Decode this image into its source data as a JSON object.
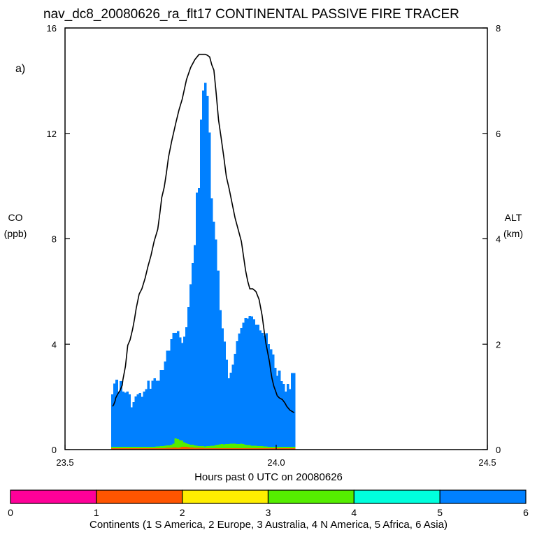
{
  "chart_data": {
    "type": "bar",
    "title": "nav_dc8_20080626_ra_flt17 CONTINENTAL PASSIVE FIRE TRACER",
    "panel_label": "a)",
    "xlabel": "Hours past 0 UTC on 20080626",
    "ylabel": "CO",
    "ylabel_unit": "(ppb)",
    "y2label": "ALT",
    "y2label_unit": "(km)",
    "xlim": [
      23.5,
      24.5
    ],
    "ylim": [
      0,
      16
    ],
    "y2lim": [
      0,
      8
    ],
    "x_ticks": [
      "23.5",
      "24.0",
      "24.5"
    ],
    "y_ticks": [
      "0",
      "4",
      "8",
      "12",
      "16"
    ],
    "y2_ticks": [
      "0",
      "2",
      "4",
      "6",
      "8"
    ],
    "grid": false,
    "stacked": true,
    "x": [
      23.6125,
      23.6175,
      23.6225,
      23.6275,
      23.6325,
      23.6375,
      23.6425,
      23.6475,
      23.6525,
      23.6575,
      23.6625,
      23.6675,
      23.6725,
      23.6775,
      23.6825,
      23.6875,
      23.6925,
      23.6975,
      23.7025,
      23.7075,
      23.7125,
      23.7175,
      23.7225,
      23.7275,
      23.7325,
      23.7375,
      23.7425,
      23.7475,
      23.7525,
      23.7575,
      23.7625,
      23.7675,
      23.7725,
      23.7775,
      23.7825,
      23.7875,
      23.7925,
      23.7975,
      23.8025,
      23.8075,
      23.8125,
      23.8175,
      23.8225,
      23.8275,
      23.8325,
      23.8375,
      23.8425,
      23.8475,
      23.8525,
      23.8575,
      23.8625,
      23.8675,
      23.8725,
      23.8775,
      23.8825,
      23.8875,
      23.8925,
      23.8975,
      23.9025,
      23.9075,
      23.9125,
      23.9175,
      23.9225,
      23.9275,
      23.9325,
      23.9375,
      23.9425,
      23.9475,
      23.9525,
      23.9575,
      23.9625,
      23.9675,
      23.9725,
      23.9775,
      23.9825,
      23.9875,
      23.9925,
      23.9975,
      24.0025,
      24.0075,
      24.0125,
      24.0175,
      24.0225,
      24.0275,
      24.0325,
      24.0375,
      24.0425
    ],
    "series": [
      {
        "name": "Europe",
        "color": "#ff5500",
        "values": [
          0.05,
          0.05,
          0.05,
          0.05,
          0.05,
          0.05,
          0.05,
          0.05,
          0.05,
          0.05,
          0.05,
          0.05,
          0.05,
          0.05,
          0.05,
          0.05,
          0.05,
          0.05,
          0.05,
          0.05,
          0.05,
          0.05,
          0.05,
          0.05,
          0.05,
          0.05,
          0.06,
          0.06,
          0.07,
          0.08,
          0.08,
          0.07,
          0.08,
          0.1,
          0.1,
          0.1,
          0.09,
          0.08,
          0.08,
          0.07,
          0.07,
          0.06,
          0.06,
          0.06,
          0.05,
          0.05,
          0.05,
          0.05,
          0.05,
          0.05,
          0.05,
          0.05,
          0.05,
          0.05,
          0.05,
          0.05,
          0.05,
          0.05,
          0.05,
          0.05,
          0.05,
          0.05,
          0.05,
          0.05,
          0.05,
          0.05,
          0.05,
          0.05,
          0.05,
          0.05,
          0.05,
          0.05,
          0.05,
          0.05,
          0.05,
          0.05,
          0.05,
          0.05,
          0.05,
          0.05,
          0.05,
          0.05,
          0.05,
          0.05,
          0.05,
          0.05,
          0.05
        ]
      },
      {
        "name": "N America",
        "color": "#55ee00",
        "values": [
          0.05,
          0.06,
          0.06,
          0.05,
          0.05,
          0.05,
          0.06,
          0.05,
          0.05,
          0.05,
          0.06,
          0.06,
          0.05,
          0.05,
          0.05,
          0.05,
          0.05,
          0.06,
          0.06,
          0.06,
          0.06,
          0.07,
          0.07,
          0.08,
          0.08,
          0.09,
          0.1,
          0.1,
          0.12,
          0.15,
          0.35,
          0.33,
          0.28,
          0.25,
          0.18,
          0.14,
          0.12,
          0.1,
          0.1,
          0.09,
          0.08,
          0.07,
          0.07,
          0.07,
          0.07,
          0.08,
          0.08,
          0.09,
          0.1,
          0.12,
          0.14,
          0.15,
          0.16,
          0.15,
          0.16,
          0.16,
          0.17,
          0.18,
          0.18,
          0.16,
          0.16,
          0.17,
          0.16,
          0.14,
          0.12,
          0.12,
          0.1,
          0.1,
          0.09,
          0.08,
          0.08,
          0.08,
          0.07,
          0.07,
          0.06,
          0.06,
          0.06,
          0.05,
          0.05,
          0.05,
          0.05,
          0.05,
          0.05,
          0.05,
          0.05,
          0.05,
          0.05
        ]
      },
      {
        "name": "Asia",
        "color": "#0080ff",
        "values": [
          2.0,
          2.4,
          2.55,
          2.1,
          2.5,
          2.1,
          2.05,
          2.1,
          2.0,
          1.5,
          1.7,
          1.9,
          2.0,
          2.05,
          1.9,
          2.1,
          2.2,
          2.5,
          2.2,
          2.5,
          2.6,
          2.5,
          2.5,
          2.9,
          2.9,
          3.2,
          3.6,
          3.6,
          4.0,
          4.2,
          4.0,
          4.1,
          3.9,
          3.7,
          4.0,
          4.4,
          5.2,
          6.1,
          6.9,
          7.6,
          9.6,
          9.8,
          12.4,
          13.5,
          13.8,
          13.3,
          11.9,
          9.4,
          8.5,
          7.8,
          6.6,
          5.1,
          4.4,
          3.9,
          3.2,
          2.5,
          2.7,
          3.0,
          3.4,
          3.9,
          4.2,
          4.4,
          4.6,
          4.8,
          4.8,
          4.9,
          4.9,
          4.8,
          4.6,
          4.6,
          4.4,
          4.3,
          4.2,
          4.3,
          3.9,
          3.7,
          3.5,
          3.0,
          2.7,
          2.9,
          2.5,
          2.4,
          2.1,
          2.4,
          2.2,
          2.8,
          2.8
        ]
      }
    ],
    "altitude_line": {
      "x": [
        23.6125,
        23.615,
        23.6185,
        23.62,
        23.6245,
        23.63,
        23.6355,
        23.637,
        23.643,
        23.6485,
        23.654,
        23.66,
        23.6645,
        23.6685,
        23.6755,
        23.682,
        23.6895,
        23.6965,
        23.7035,
        23.711,
        23.7195,
        23.7245,
        23.729,
        23.735,
        23.74,
        23.745,
        23.7525,
        23.7625,
        23.77,
        23.7775,
        23.7875,
        23.7975,
        23.8075,
        23.8175,
        23.8275,
        23.8325,
        23.8375,
        23.8425,
        23.8475,
        23.8525,
        23.8575,
        23.8635,
        23.869,
        23.876,
        23.882,
        23.8885,
        23.9025,
        23.9175,
        23.9275,
        23.9325,
        23.9375,
        23.9445,
        23.952,
        23.9595,
        23.9665,
        23.9715,
        23.976,
        23.979,
        23.9845,
        23.987,
        23.99,
        23.9945,
        24.0,
        24.0025,
        24.0075,
        24.0145,
        24.021,
        24.025,
        24.0325,
        24.0425
      ],
      "values": [
        0.82,
        0.85,
        0.92,
        0.98,
        1.05,
        1.12,
        1.22,
        1.32,
        1.58,
        1.98,
        2.08,
        2.28,
        2.48,
        2.68,
        2.95,
        3.05,
        3.25,
        3.48,
        3.68,
        3.95,
        4.18,
        4.48,
        4.78,
        4.98,
        5.25,
        5.55,
        5.85,
        6.2,
        6.45,
        6.65,
        7.02,
        7.25,
        7.4,
        7.5,
        7.5,
        7.5,
        7.48,
        7.45,
        7.3,
        7.2,
        6.8,
        6.25,
        5.95,
        5.55,
        5.18,
        4.95,
        4.4,
        3.95,
        3.4,
        3.2,
        3.05,
        3.05,
        3.0,
        2.85,
        2.55,
        2.25,
        2.0,
        1.88,
        1.65,
        1.5,
        1.35,
        1.2,
        1.08,
        1.02,
        0.98,
        0.95,
        0.88,
        0.82,
        0.75,
        0.7
      ]
    },
    "colorbar": {
      "ticks": [
        "0",
        "1",
        "2",
        "3",
        "4",
        "5",
        "6"
      ],
      "colors": [
        "#ff0099",
        "#ff5500",
        "#ffee00",
        "#55ee00",
        "#00ffdd",
        "#0080ff"
      ],
      "caption": "Continents (1 S America, 2 Europe, 3 Australia, 4 N America, 5 Africa, 6 Asia)"
    }
  }
}
